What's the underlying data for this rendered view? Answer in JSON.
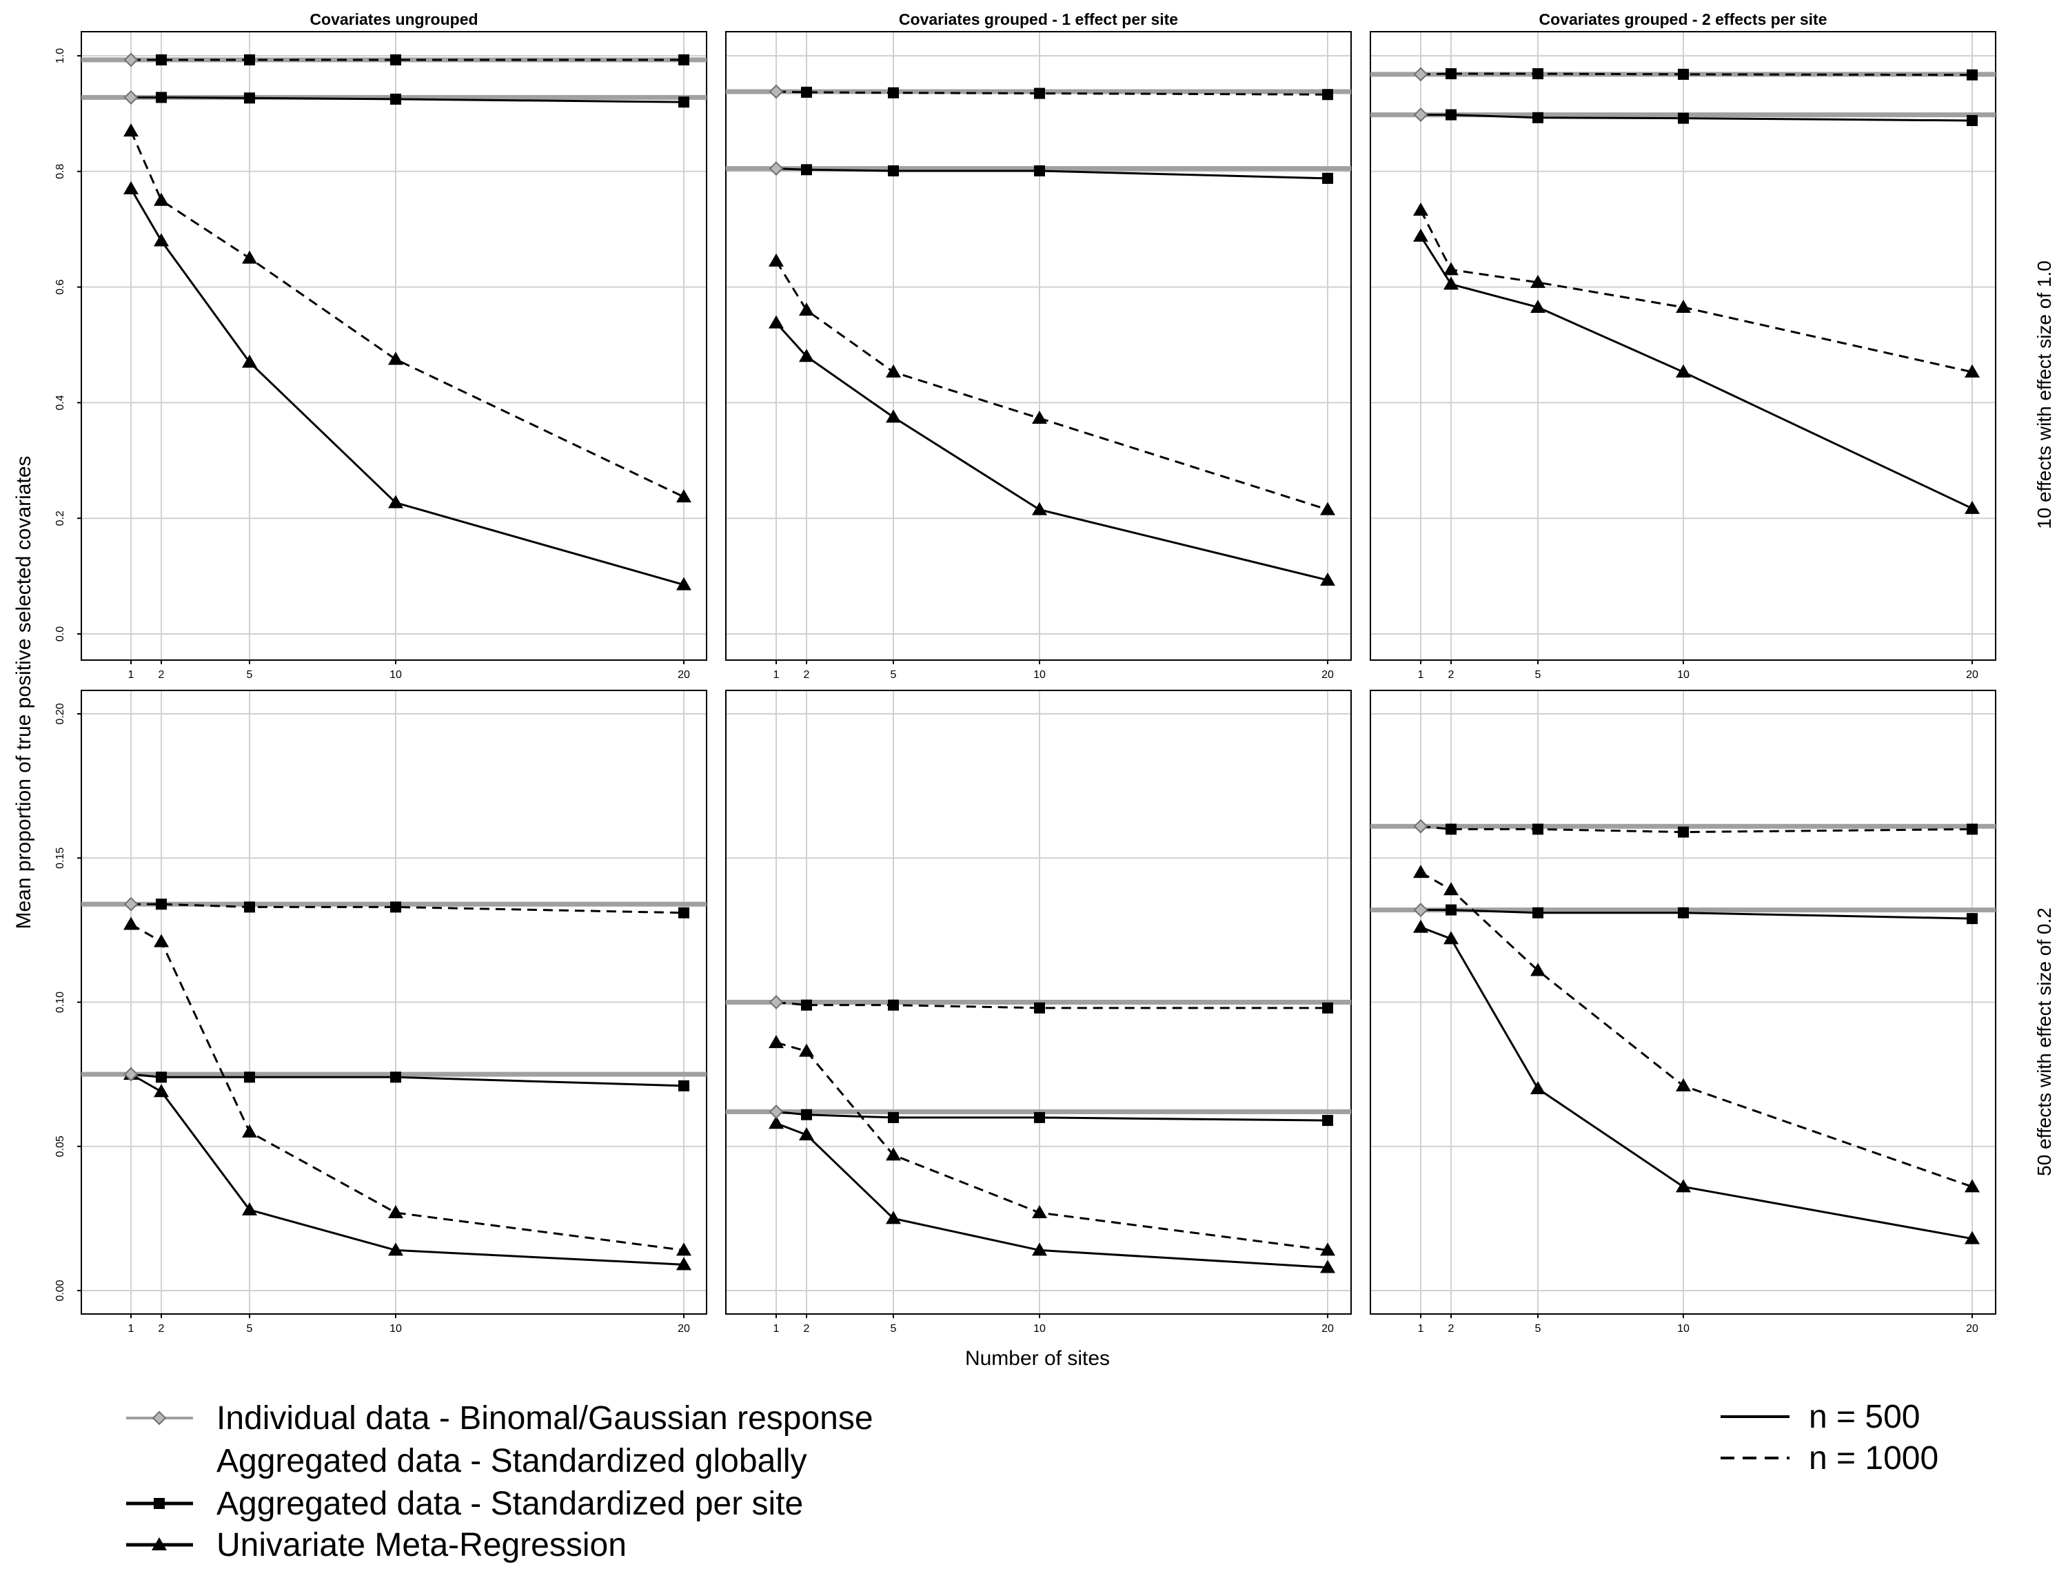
{
  "chart_data": {
    "type": "line",
    "ylabel": "Mean proportion of true positive selected covariates",
    "xlabel": "Number of sites",
    "x": [
      1,
      2,
      5,
      10,
      20
    ],
    "x_scale": "sqrt",
    "grid": true,
    "columns": [
      "Covariates ungrouped",
      "Covariates grouped - 1 effect per site",
      "Covariates grouped - 2 effects per site"
    ],
    "rows": [
      {
        "label": "10 effects with effect size of 1.0",
        "ylim": [
          0,
          1.0
        ],
        "yticks": [
          "0.0",
          "0.2",
          "0.4",
          "0.6",
          "0.8",
          "1.0"
        ],
        "ytick_values": [
          0,
          0.2,
          0.4,
          0.6,
          0.8,
          1.0
        ]
      },
      {
        "label": "50 effects with effect size of 0.2",
        "ylim": [
          0,
          0.2
        ],
        "yticks": [
          "0.00",
          "0.05",
          "0.10",
          "0.15",
          "0.20"
        ],
        "ytick_values": [
          0,
          0.05,
          0.1,
          0.15,
          0.2
        ]
      }
    ],
    "panels": [
      {
        "row": 0,
        "col": 0,
        "individual": {
          "500": 0.928,
          "1000": 0.993
        },
        "series": [
          {
            "method": "Aggregated data - Standardized per site",
            "n": "1000",
            "values": [
              0.993,
              0.993,
              0.993,
              0.993,
              0.993
            ]
          },
          {
            "method": "Aggregated data - Standardized per site",
            "n": "500",
            "values": [
              0.928,
              0.928,
              0.927,
              0.925,
              0.92
            ]
          },
          {
            "method": "Univariate Meta-Regression",
            "n": "1000",
            "values": [
              0.87,
              0.75,
              0.65,
              0.475,
              0.237
            ]
          },
          {
            "method": "Univariate Meta-Regression",
            "n": "500",
            "values": [
              0.77,
              0.68,
              0.47,
              0.227,
              0.085
            ]
          }
        ]
      },
      {
        "row": 0,
        "col": 1,
        "individual": {
          "500": 0.805,
          "1000": 0.938
        },
        "series": [
          {
            "method": "Aggregated data - Standardized per site",
            "n": "1000",
            "values": [
              0.938,
              0.937,
              0.936,
              0.935,
              0.933
            ]
          },
          {
            "method": "Aggregated data - Standardized per site",
            "n": "500",
            "values": [
              0.805,
              0.803,
              0.801,
              0.801,
              0.788
            ]
          },
          {
            "method": "Univariate Meta-Regression",
            "n": "1000",
            "values": [
              0.645,
              0.56,
              0.453,
              0.373,
              0.215
            ]
          },
          {
            "method": "Univariate Meta-Regression",
            "n": "500",
            "values": [
              0.538,
              0.48,
              0.375,
              0.215,
              0.093
            ]
          }
        ]
      },
      {
        "row": 0,
        "col": 2,
        "individual": {
          "500": 0.898,
          "1000": 0.968
        },
        "series": [
          {
            "method": "Aggregated data - Standardized per site",
            "n": "1000",
            "values": [
              0.968,
              0.969,
              0.969,
              0.968,
              0.967
            ]
          },
          {
            "method": "Aggregated data - Standardized per site",
            "n": "500",
            "values": [
              0.898,
              0.898,
              0.893,
              0.892,
              0.888
            ]
          },
          {
            "method": "Univariate Meta-Regression",
            "n": "1000",
            "values": [
              0.733,
              0.63,
              0.608,
              0.565,
              0.453
            ]
          },
          {
            "method": "Univariate Meta-Regression",
            "n": "500",
            "values": [
              0.688,
              0.605,
              0.565,
              0.453,
              0.217
            ]
          }
        ]
      },
      {
        "row": 1,
        "col": 0,
        "individual": {
          "500": 0.075,
          "1000": 0.134
        },
        "series": [
          {
            "method": "Aggregated data - Standardized per site",
            "n": "1000",
            "values": [
              0.134,
              0.134,
              0.133,
              0.133,
              0.131
            ]
          },
          {
            "method": "Aggregated data - Standardized per site",
            "n": "500",
            "values": [
              0.075,
              0.074,
              0.074,
              0.074,
              0.071
            ]
          },
          {
            "method": "Univariate Meta-Regression",
            "n": "1000",
            "values": [
              0.127,
              0.121,
              0.055,
              0.027,
              0.014
            ]
          },
          {
            "method": "Univariate Meta-Regression",
            "n": "500",
            "values": [
              0.075,
              0.069,
              0.028,
              0.014,
              0.009
            ]
          }
        ]
      },
      {
        "row": 1,
        "col": 1,
        "individual": {
          "500": 0.062,
          "1000": 0.1
        },
        "series": [
          {
            "method": "Aggregated data - Standardized per site",
            "n": "1000",
            "values": [
              0.1,
              0.099,
              0.099,
              0.098,
              0.098
            ]
          },
          {
            "method": "Aggregated data - Standardized per site",
            "n": "500",
            "values": [
              0.062,
              0.061,
              0.06,
              0.06,
              0.059
            ]
          },
          {
            "method": "Univariate Meta-Regression",
            "n": "1000",
            "values": [
              0.086,
              0.083,
              0.047,
              0.027,
              0.014
            ]
          },
          {
            "method": "Univariate Meta-Regression",
            "n": "500",
            "values": [
              0.058,
              0.054,
              0.025,
              0.014,
              0.008
            ]
          }
        ]
      },
      {
        "row": 1,
        "col": 2,
        "individual": {
          "500": 0.132,
          "1000": 0.161
        },
        "series": [
          {
            "method": "Aggregated data - Standardized per site",
            "n": "1000",
            "values": [
              0.161,
              0.16,
              0.16,
              0.159,
              0.16
            ]
          },
          {
            "method": "Aggregated data - Standardized per site",
            "n": "500",
            "values": [
              0.132,
              0.132,
              0.131,
              0.131,
              0.129
            ]
          },
          {
            "method": "Univariate Meta-Regression",
            "n": "1000",
            "values": [
              0.145,
              0.139,
              0.111,
              0.071,
              0.036
            ]
          },
          {
            "method": "Univariate Meta-Regression",
            "n": "500",
            "values": [
              0.126,
              0.122,
              0.07,
              0.036,
              0.018
            ]
          }
        ]
      }
    ],
    "legend": {
      "methods": [
        {
          "label": "Individual data - Binomal/Gaussian response",
          "color": "#a0a0a0",
          "marker": "diamond"
        },
        {
          "label": "Aggregated data - Standardized globally",
          "color": "#000000",
          "marker": "none"
        },
        {
          "label": "Aggregated data - Standardized per site",
          "color": "#000000",
          "marker": "square"
        },
        {
          "label": "Univariate Meta-Regression",
          "color": "#000000",
          "marker": "triangle"
        }
      ],
      "sizes": [
        {
          "label": "n = 500",
          "linestyle": "solid"
        },
        {
          "label": "n = 1000",
          "linestyle": "dashed"
        }
      ]
    },
    "colors": {
      "individual": "#a0a0a0",
      "aggregated": "#000000",
      "grid": "#d0d0d0"
    }
  }
}
